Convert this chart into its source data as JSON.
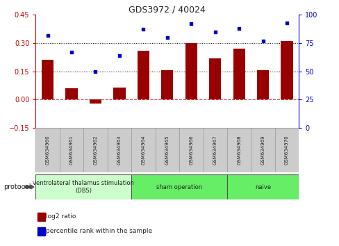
{
  "title": "GDS3972 / 40024",
  "samples": [
    "GSM634960",
    "GSM634961",
    "GSM634962",
    "GSM634963",
    "GSM634964",
    "GSM634965",
    "GSM634966",
    "GSM634967",
    "GSM634968",
    "GSM634969",
    "GSM634970"
  ],
  "log2_ratio": [
    0.21,
    0.06,
    -0.02,
    0.065,
    0.26,
    0.155,
    0.3,
    0.22,
    0.27,
    0.155,
    0.31
  ],
  "percentile_rank": [
    82,
    67,
    50,
    64,
    87,
    80,
    92,
    85,
    88,
    77,
    93
  ],
  "bar_color": "#990000",
  "dot_color": "#0000cc",
  "ylim_left": [
    -0.15,
    0.45
  ],
  "ylim_right": [
    0,
    100
  ],
  "yticks_left": [
    -0.15,
    0,
    0.15,
    0.3,
    0.45
  ],
  "yticks_right": [
    0,
    25,
    50,
    75,
    100
  ],
  "hlines": [
    0.15,
    0.3
  ],
  "zero_line_color": "#cc4444",
  "hline_color": "#000000",
  "protocol_groups": [
    {
      "label": "ventrolateral thalamus stimulation\n(DBS)",
      "start": 0,
      "end": 3,
      "color": "#ccffcc"
    },
    {
      "label": "sham operation",
      "start": 4,
      "end": 7,
      "color": "#66ee66"
    },
    {
      "label": "naive",
      "start": 8,
      "end": 10,
      "color": "#66ee66"
    }
  ],
  "legend_bar_label": "log2 ratio",
  "legend_dot_label": "percentile rank within the sample",
  "protocol_label": "protocol",
  "background_color": "#ffffff",
  "tick_label_color_left": "#cc0000",
  "tick_label_color_right": "#0000cc",
  "sample_box_color": "#cccccc",
  "sample_box_edge": "#999999"
}
